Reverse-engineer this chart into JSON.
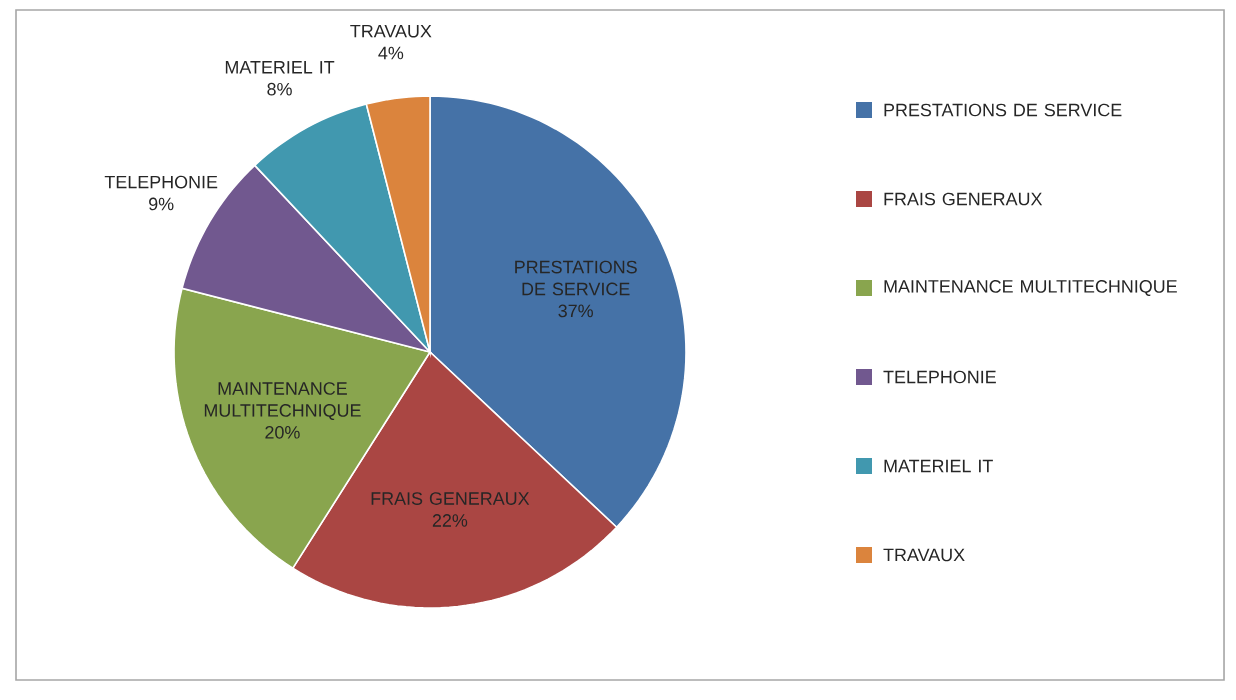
{
  "chart_data": {
    "type": "pie",
    "categories": [
      "PRESTATIONS DE SERVICE",
      "FRAIS GENERAUX",
      "MAINTENANCE MULTITECHNIQUE",
      "TELEPHONIE",
      "MATERIEL IT",
      "TRAVAUX"
    ],
    "values": [
      37,
      22,
      20,
      9,
      8,
      4
    ],
    "colors": [
      "#4572a7",
      "#aa4643",
      "#89a54e",
      "#71588f",
      "#4198af",
      "#db843d"
    ],
    "value_labels": [
      "37%",
      "22%",
      "20%",
      "9%",
      "8%",
      "4%"
    ],
    "legend": "right"
  }
}
